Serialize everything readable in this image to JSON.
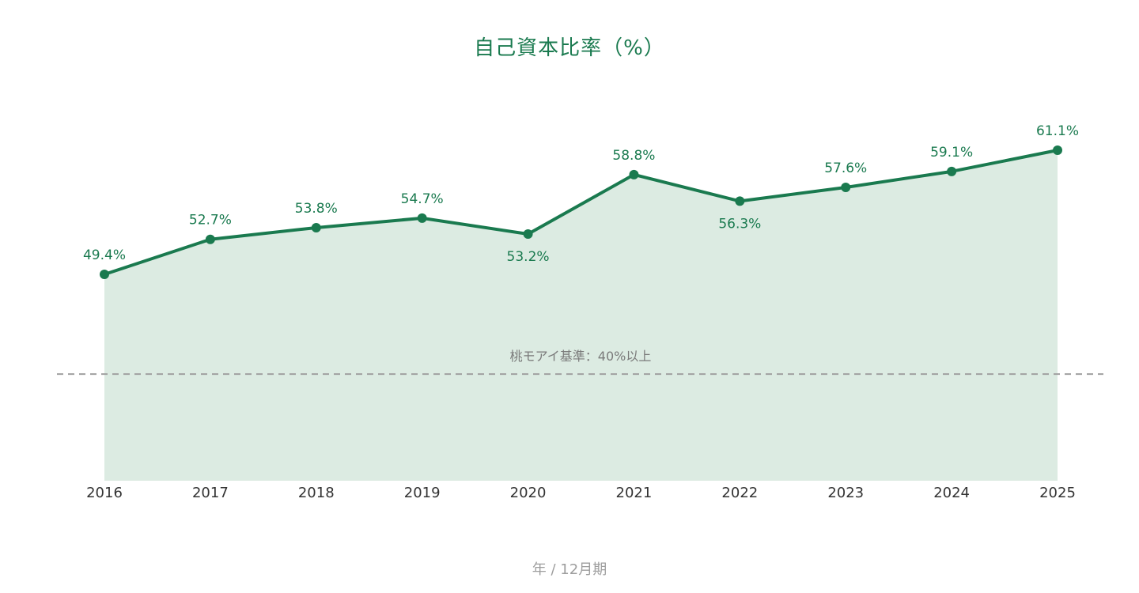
{
  "chart_data": {
    "type": "area",
    "title": "自己資本比率（%）",
    "xlabel": "年 / 12月期",
    "ylabel": "",
    "categories": [
      "2016",
      "2017",
      "2018",
      "2019",
      "2020",
      "2021",
      "2022",
      "2023",
      "2024",
      "2025"
    ],
    "values": [
      49.4,
      52.7,
      53.8,
      54.7,
      53.2,
      58.8,
      56.3,
      57.6,
      59.1,
      61.1
    ],
    "data_labels": [
      "49.4%",
      "52.7%",
      "53.8%",
      "54.7%",
      "53.2%",
      "58.8%",
      "56.3%",
      "57.6%",
      "59.1%",
      "61.1%"
    ],
    "label_position": [
      "above",
      "above",
      "above",
      "above",
      "below",
      "above",
      "below",
      "above",
      "above",
      "above"
    ],
    "ylim": [
      30,
      62
    ],
    "grid": false,
    "reference_line": {
      "value": 40,
      "label": "桃モアイ基準：40%以上",
      "style": "dashed"
    },
    "colors": {
      "line": "#1a7a4f",
      "fill": "#dcebe2",
      "reference": "#a0a0a0",
      "title": "#1a7a4f"
    }
  }
}
